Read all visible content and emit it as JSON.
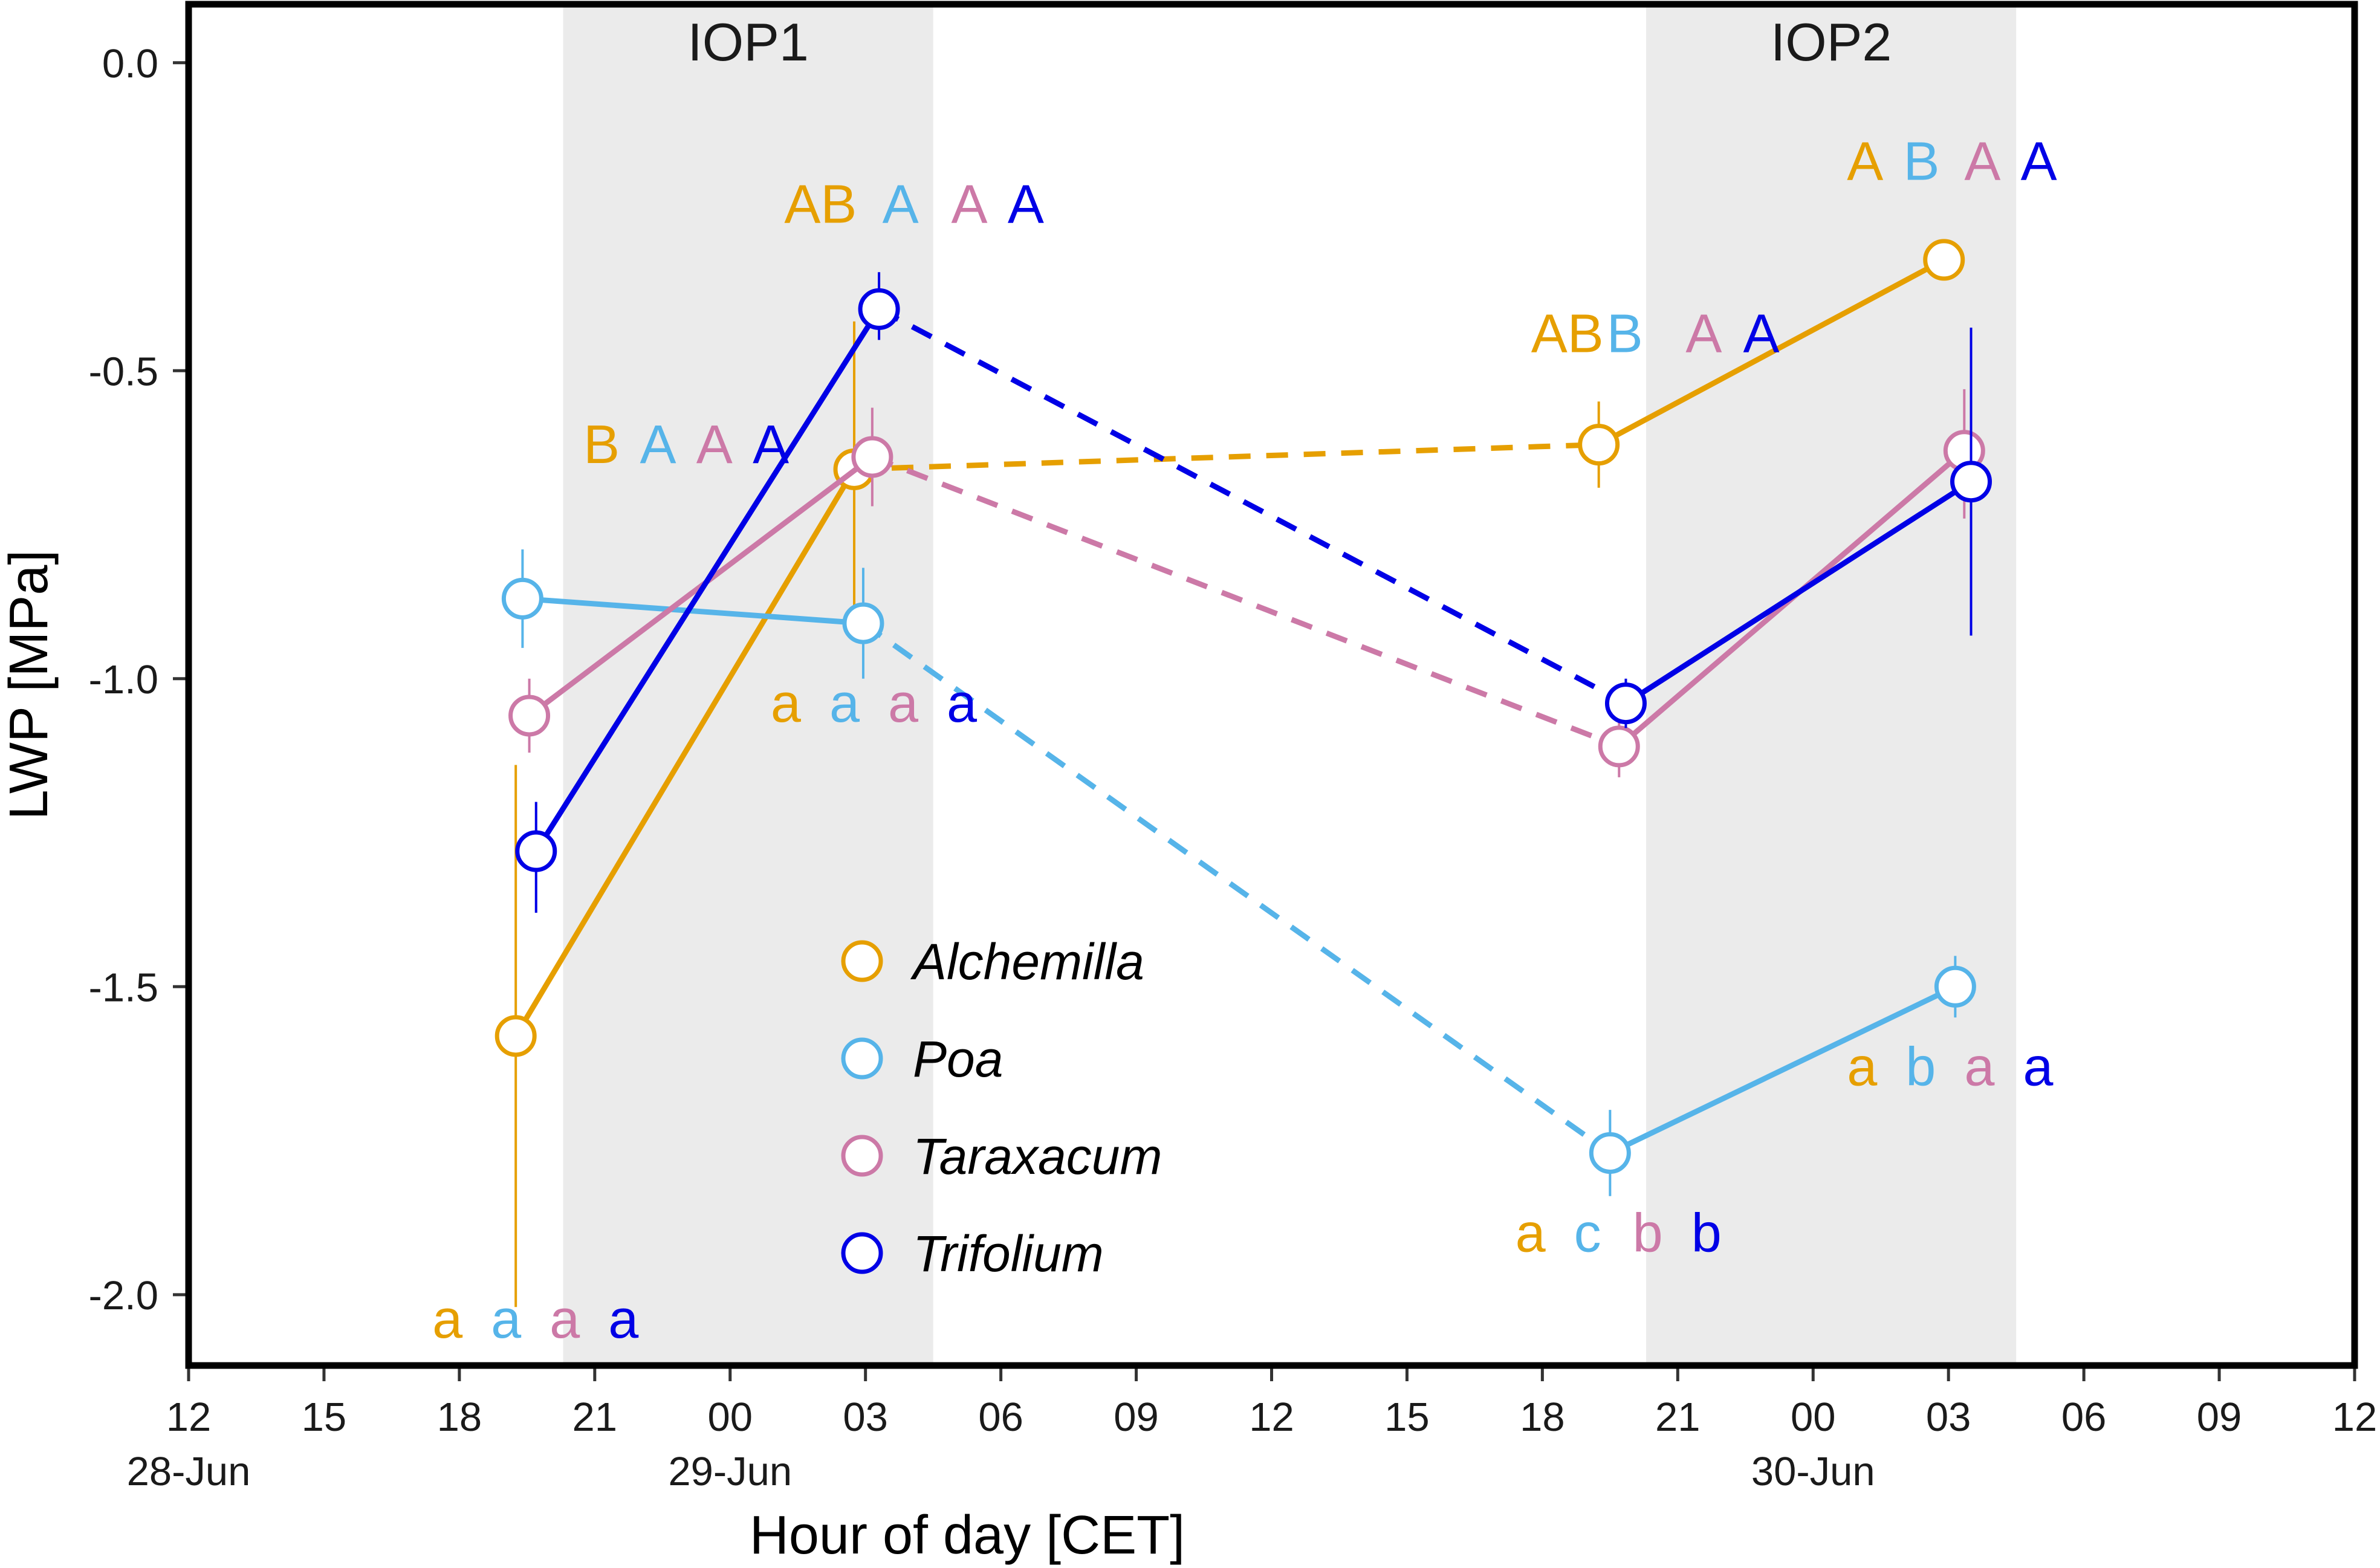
{
  "chart_data": {
    "type": "line",
    "xlabel": "Hour of day [CET]",
    "ylabel": "LWP [MPa]",
    "xlim": [
      0,
      96
    ],
    "ylim": [
      -2.115,
      0.095
    ],
    "x_unit": "hours since 12:00 on 28-Jun (CET)",
    "x_ticks": [
      {
        "x": 0,
        "label": "12"
      },
      {
        "x": 6,
        "label": "15"
      },
      {
        "x": 12,
        "label": "18"
      },
      {
        "x": 18,
        "label": "21"
      },
      {
        "x": 24,
        "label": "00"
      },
      {
        "x": 30,
        "label": "03"
      },
      {
        "x": 36,
        "label": "06"
      },
      {
        "x": 42,
        "label": "09"
      },
      {
        "x": 48,
        "label": "12"
      },
      {
        "x": 54,
        "label": "15"
      },
      {
        "x": 60,
        "label": "18"
      },
      {
        "x": 66,
        "label": "21"
      },
      {
        "x": 72,
        "label": "00"
      },
      {
        "x": 78,
        "label": "03"
      },
      {
        "x": 84,
        "label": "06"
      },
      {
        "x": 90,
        "label": "09"
      },
      {
        "x": 96,
        "label": "12"
      }
    ],
    "date_labels": [
      {
        "x": 0,
        "label": "28-Jun"
      },
      {
        "x": 24,
        "label": "29-Jun"
      },
      {
        "x": 72,
        "label": "30-Jun"
      }
    ],
    "y_ticks": [
      {
        "y": 0.0,
        "label": "0.0"
      },
      {
        "y": -0.5,
        "label": "-0.5"
      },
      {
        "y": -1.0,
        "label": "-1.0"
      },
      {
        "y": -1.5,
        "label": "-1.5"
      },
      {
        "y": -2.0,
        "label": "-2.0"
      }
    ],
    "shaded_periods": [
      {
        "label": "IOP1",
        "start": 16.6,
        "end": 33.0
      },
      {
        "label": "IOP2",
        "start": 64.6,
        "end": 81.0
      }
    ],
    "series": [
      {
        "name": "Alchemilla",
        "color": "#E69F00",
        "points": [
          {
            "x": 14.5,
            "y": -1.58,
            "err_low": -2.02,
            "err_high": -1.14
          },
          {
            "x": 29.5,
            "y": -0.66,
            "err_low": -0.9,
            "err_high": -0.42
          },
          {
            "x": 62.5,
            "y": -0.62,
            "err_low": -0.69,
            "err_high": -0.55
          },
          {
            "x": 77.8,
            "y": -0.32,
            "err_low": -0.35,
            "err_high": -0.29
          }
        ],
        "segments": [
          "solid",
          "dashed",
          "solid"
        ]
      },
      {
        "name": "Poa",
        "color": "#56B4E9",
        "points": [
          {
            "x": 14.8,
            "y": -0.87,
            "err_low": -0.95,
            "err_high": -0.79
          },
          {
            "x": 29.9,
            "y": -0.91,
            "err_low": -1.0,
            "err_high": -0.82
          },
          {
            "x": 63.0,
            "y": -1.77,
            "err_low": -1.84,
            "err_high": -1.7
          },
          {
            "x": 78.3,
            "y": -1.5,
            "err_low": -1.55,
            "err_high": -1.45
          }
        ],
        "segments": [
          "solid",
          "dashed",
          "solid"
        ]
      },
      {
        "name": "Taraxacum",
        "color": "#CC79A7",
        "points": [
          {
            "x": 15.1,
            "y": -1.06,
            "err_low": -1.12,
            "err_high": -1.0
          },
          {
            "x": 30.3,
            "y": -0.64,
            "err_low": -0.72,
            "err_high": -0.56
          },
          {
            "x": 63.4,
            "y": -1.11,
            "err_low": -1.16,
            "err_high": -1.06
          },
          {
            "x": 78.7,
            "y": -0.63,
            "err_low": -0.74,
            "err_high": -0.53
          }
        ],
        "segments": [
          "solid",
          "dashed",
          "solid"
        ]
      },
      {
        "name": "Trifolium",
        "color": "#0000E6",
        "points": [
          {
            "x": 15.4,
            "y": -1.28,
            "err_low": -1.38,
            "err_high": -1.2
          },
          {
            "x": 30.6,
            "y": -0.4,
            "err_low": -0.45,
            "err_high": -0.34
          },
          {
            "x": 63.7,
            "y": -1.04,
            "err_low": -1.08,
            "err_high": -1.0
          },
          {
            "x": 79.0,
            "y": -0.68,
            "err_low": -0.93,
            "err_high": -0.43
          }
        ],
        "segments": [
          "solid",
          "dashed",
          "solid"
        ]
      }
    ],
    "upper_letter_groups": [
      {
        "x": 17.5,
        "y": -0.65,
        "letters": [
          {
            "text": "B",
            "color": "#E69F00",
            "dx": 0
          },
          {
            "text": "A",
            "color": "#56B4E9",
            "dx": 2.5
          },
          {
            "text": "A",
            "color": "#CC79A7",
            "dx": 5.0
          },
          {
            "text": "A",
            "color": "#0000E6",
            "dx": 7.5
          }
        ]
      },
      {
        "x": 26.4,
        "y": -0.26,
        "letters": [
          {
            "text": "AB",
            "color": "#E69F00",
            "dx": 0
          },
          {
            "text": "A",
            "color": "#56B4E9",
            "dx": 4.35
          },
          {
            "text": "A",
            "color": "#CC79A7",
            "dx": 7.4
          },
          {
            "text": "A",
            "color": "#0000E6",
            "dx": 9.9
          }
        ]
      },
      {
        "x": 59.5,
        "y": -0.47,
        "letters": [
          {
            "text": "AB",
            "color": "#E69F00",
            "dx": 0
          },
          {
            "text": "B",
            "color": "#56B4E9",
            "dx": 3.35
          },
          {
            "text": "A",
            "color": "#CC79A7",
            "dx": 6.85
          },
          {
            "text": "A",
            "color": "#0000E6",
            "dx": 9.4
          }
        ]
      },
      {
        "x": 73.5,
        "y": -0.19,
        "letters": [
          {
            "text": "A",
            "color": "#E69F00",
            "dx": 0
          },
          {
            "text": "B",
            "color": "#56B4E9",
            "dx": 2.5
          },
          {
            "text": "A",
            "color": "#CC79A7",
            "dx": 5.2
          },
          {
            "text": "A",
            "color": "#0000E6",
            "dx": 7.7
          }
        ]
      }
    ],
    "lower_letter_groups": [
      {
        "x": 10.8,
        "y": -2.07,
        "letters": [
          {
            "text": "a",
            "color": "#E69F00",
            "dx": 0
          },
          {
            "text": "a",
            "color": "#56B4E9",
            "dx": 2.6
          },
          {
            "text": "a",
            "color": "#CC79A7",
            "dx": 5.2
          },
          {
            "text": "a",
            "color": "#0000E6",
            "dx": 7.8
          }
        ]
      },
      {
        "x": 25.8,
        "y": -1.07,
        "letters": [
          {
            "text": "a",
            "color": "#E69F00",
            "dx": 0
          },
          {
            "text": "a",
            "color": "#56B4E9",
            "dx": 2.6
          },
          {
            "text": "a",
            "color": "#CC79A7",
            "dx": 5.2
          },
          {
            "text": "a",
            "color": "#0000E6",
            "dx": 7.8
          }
        ]
      },
      {
        "x": 58.8,
        "y": -1.93,
        "letters": [
          {
            "text": "a",
            "color": "#E69F00",
            "dx": 0
          },
          {
            "text": "c",
            "color": "#56B4E9",
            "dx": 2.6
          },
          {
            "text": "b",
            "color": "#CC79A7",
            "dx": 5.2
          },
          {
            "text": "b",
            "color": "#0000E6",
            "dx": 7.8
          }
        ]
      },
      {
        "x": 73.5,
        "y": -1.66,
        "letters": [
          {
            "text": "a",
            "color": "#E69F00",
            "dx": 0
          },
          {
            "text": "b",
            "color": "#56B4E9",
            "dx": 2.6
          },
          {
            "text": "a",
            "color": "#CC79A7",
            "dx": 5.2
          },
          {
            "text": "a",
            "color": "#0000E6",
            "dx": 7.8
          }
        ]
      }
    ],
    "legend": {
      "position": "center-bottom",
      "entries": [
        "Alchemilla",
        "Poa",
        "Taraxacum",
        "Trifolium"
      ]
    }
  }
}
